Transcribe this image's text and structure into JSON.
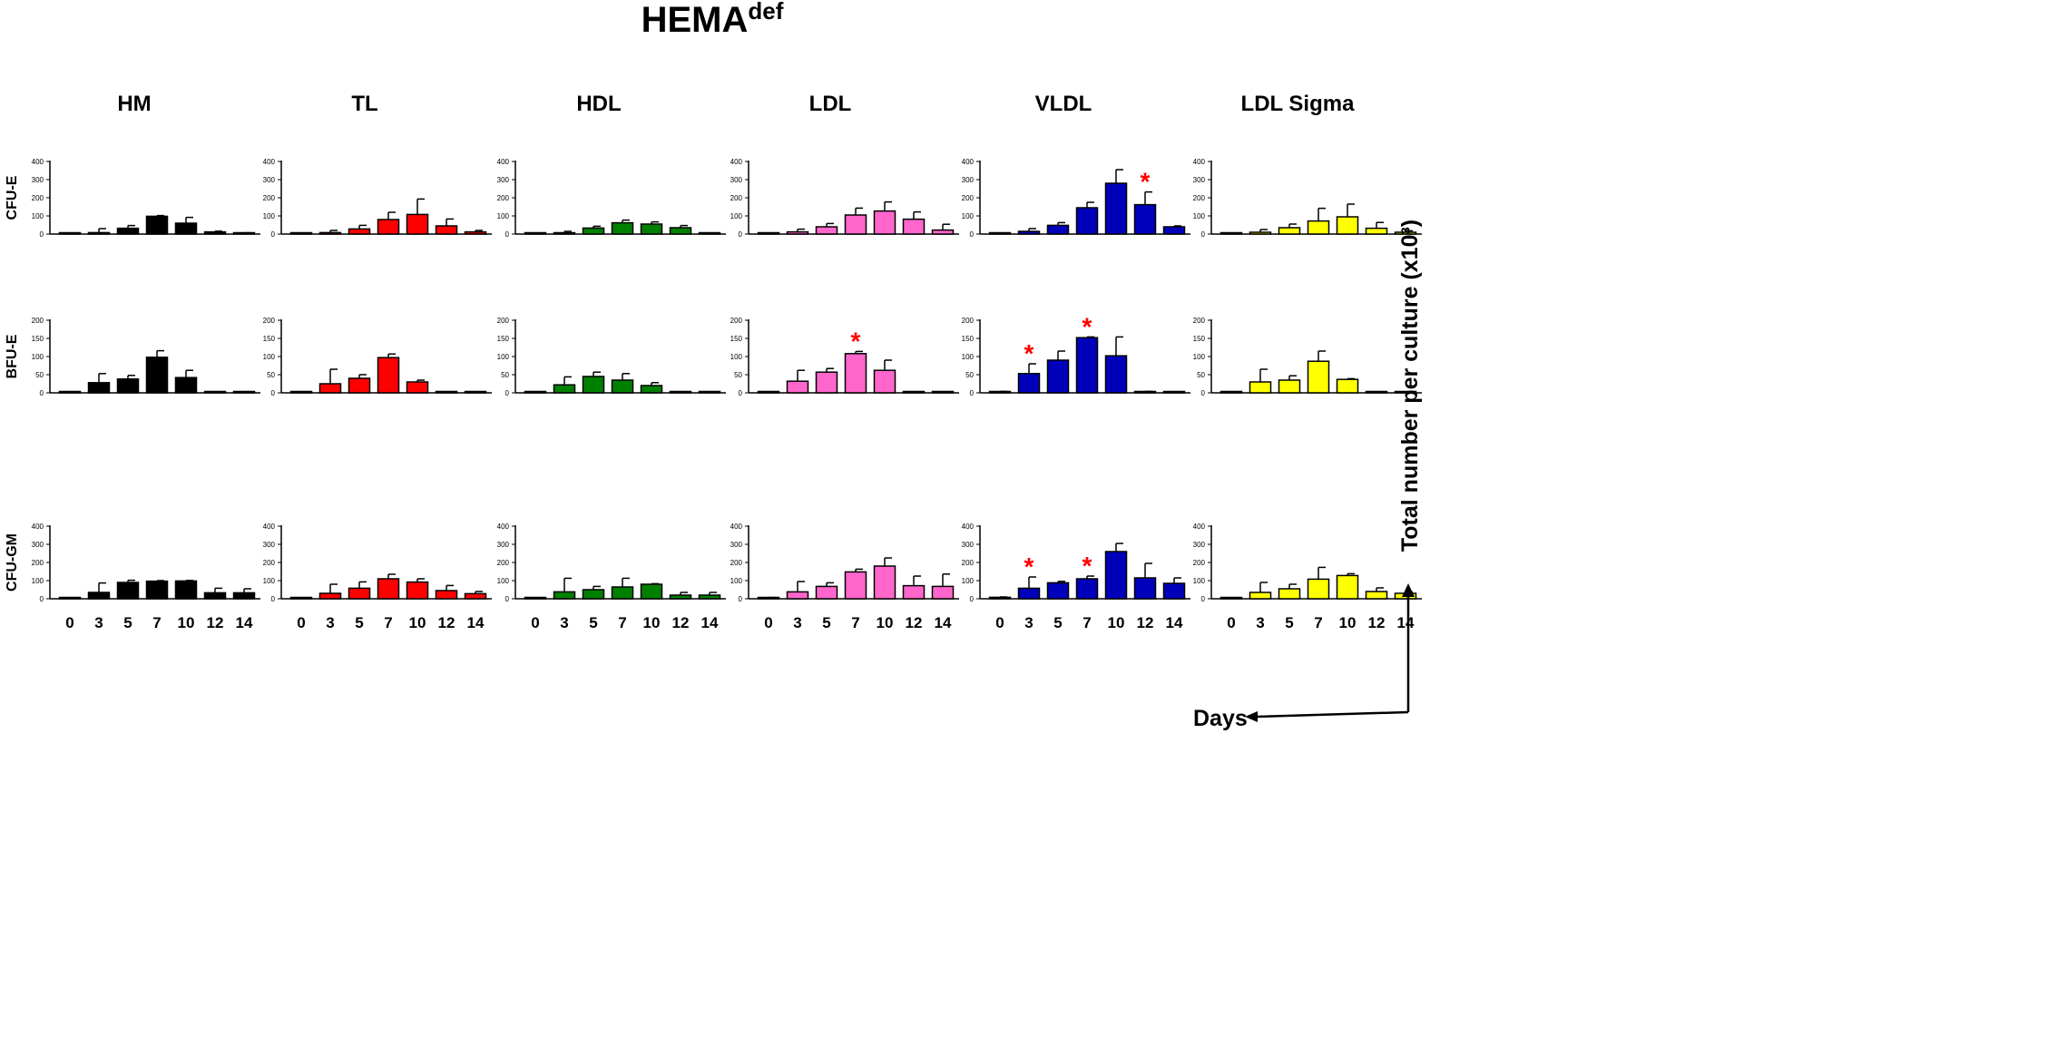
{
  "title": "HEMA",
  "title_superscript": "def",
  "y_axis_label": "Total number per culture (x10³)",
  "x_axis_label": "Days",
  "columns": [
    "HM",
    "TL",
    "HDL",
    "LDL",
    "VLDL",
    "LDL Sigma"
  ],
  "rows": [
    "CFU-E",
    "BFU-E",
    "CFU-GM"
  ],
  "colors": {
    "HM": "#000000",
    "TL": "#ff0000",
    "HDL": "#008000",
    "LDL": "#ff66cc",
    "VLDL": "#0000bb",
    "LDL Sigma": "#ffff00",
    "asterisk": "#ff0000"
  },
  "chart_data": {
    "type": "bar",
    "categories": [
      "0",
      "3",
      "5",
      "7",
      "10",
      "12",
      "14"
    ],
    "row_ylims": {
      "CFU-E": [
        0,
        400
      ],
      "BFU-E": [
        0,
        200
      ],
      "CFU-GM": [
        0,
        400
      ]
    },
    "row_ticks": {
      "CFU-E": [
        "0",
        "100",
        "200",
        "300",
        "400"
      ],
      "BFU-E": [
        "0",
        "50",
        "100",
        "150",
        "200"
      ],
      "CFU-GM": [
        "0",
        "100",
        "200",
        "300",
        "400"
      ]
    },
    "panels": [
      {
        "row": "CFU-E",
        "column": "HM",
        "values": [
          2,
          8,
          32,
          98,
          60,
          12,
          5
        ],
        "errors": [
          1,
          22,
          15,
          4,
          32,
          4,
          2
        ],
        "significant": []
      },
      {
        "row": "CFU-E",
        "column": "TL",
        "values": [
          2,
          8,
          28,
          80,
          108,
          45,
          12
        ],
        "errors": [
          1,
          12,
          20,
          40,
          85,
          38,
          8
        ],
        "significant": []
      },
      {
        "row": "CFU-E",
        "column": "HDL",
        "values": [
          2,
          5,
          33,
          62,
          55,
          35,
          3
        ],
        "errors": [
          1,
          10,
          10,
          15,
          12,
          12,
          1
        ],
        "significant": []
      },
      {
        "row": "CFU-E",
        "column": "LDL",
        "values": [
          2,
          12,
          40,
          105,
          127,
          82,
          22
        ],
        "errors": [
          1,
          15,
          18,
          38,
          50,
          40,
          32
        ],
        "significant": []
      },
      {
        "row": "CFU-E",
        "column": "VLDL",
        "values": [
          2,
          15,
          48,
          145,
          280,
          162,
          40
        ],
        "errors": [
          1,
          15,
          15,
          30,
          75,
          70,
          5
        ],
        "significant": [
          5
        ]
      },
      {
        "row": "CFU-E",
        "column": "LDL Sigma",
        "values": [
          2,
          10,
          35,
          72,
          95,
          32,
          10
        ],
        "errors": [
          1,
          15,
          20,
          70,
          70,
          32,
          8
        ],
        "significant": []
      },
      {
        "row": "BFU-E",
        "column": "HM",
        "values": [
          1,
          28,
          38,
          98,
          42,
          1,
          0
        ],
        "errors": [
          1,
          25,
          10,
          18,
          20,
          0,
          0
        ],
        "significant": []
      },
      {
        "row": "BFU-E",
        "column": "TL",
        "values": [
          1,
          25,
          40,
          97,
          30,
          1,
          0
        ],
        "errors": [
          1,
          40,
          10,
          10,
          5,
          0,
          0
        ],
        "significant": []
      },
      {
        "row": "BFU-E",
        "column": "HDL",
        "values": [
          1,
          22,
          45,
          35,
          20,
          1,
          0
        ],
        "errors": [
          0,
          22,
          12,
          18,
          8,
          0,
          0
        ],
        "significant": []
      },
      {
        "row": "BFU-E",
        "column": "LDL",
        "values": [
          2,
          32,
          57,
          108,
          62,
          2,
          0
        ],
        "errors": [
          1,
          30,
          10,
          6,
          28,
          1,
          0
        ],
        "significant": [
          3
        ]
      },
      {
        "row": "BFU-E",
        "column": "VLDL",
        "values": [
          3,
          53,
          90,
          152,
          102,
          3,
          1
        ],
        "errors": [
          1,
          27,
          25,
          2,
          52,
          1,
          0
        ],
        "significant": [
          1,
          3
        ]
      },
      {
        "row": "BFU-E",
        "column": "LDL Sigma",
        "values": [
          1,
          30,
          35,
          87,
          37,
          1,
          0
        ],
        "errors": [
          1,
          35,
          12,
          28,
          2,
          0,
          0
        ],
        "significant": []
      },
      {
        "row": "CFU-GM",
        "column": "HM",
        "values": [
          3,
          35,
          90,
          97,
          98,
          33,
          33
        ],
        "errors": [
          1,
          52,
          12,
          3,
          3,
          25,
          22
        ],
        "significant": []
      },
      {
        "row": "CFU-GM",
        "column": "TL",
        "values": [
          2,
          30,
          58,
          110,
          92,
          45,
          28
        ],
        "errors": [
          1,
          50,
          35,
          25,
          18,
          28,
          12
        ],
        "significant": []
      },
      {
        "row": "CFU-GM",
        "column": "HDL",
        "values": [
          2,
          38,
          50,
          65,
          80,
          20,
          20
        ],
        "errors": [
          1,
          75,
          18,
          48,
          3,
          15,
          15
        ],
        "significant": []
      },
      {
        "row": "CFU-GM",
        "column": "LDL",
        "values": [
          5,
          38,
          68,
          148,
          180,
          72,
          68
        ],
        "errors": [
          2,
          57,
          20,
          15,
          45,
          53,
          68
        ],
        "significant": []
      },
      {
        "row": "CFU-GM",
        "column": "VLDL",
        "values": [
          8,
          58,
          88,
          110,
          260,
          115,
          85
        ],
        "errors": [
          2,
          62,
          8,
          15,
          45,
          80,
          30
        ],
        "significant": [
          1,
          3
        ]
      },
      {
        "row": "CFU-GM",
        "column": "LDL Sigma",
        "values": [
          3,
          35,
          55,
          108,
          128,
          40,
          30
        ],
        "errors": [
          1,
          55,
          25,
          65,
          10,
          20,
          8
        ],
        "significant": []
      }
    ]
  }
}
